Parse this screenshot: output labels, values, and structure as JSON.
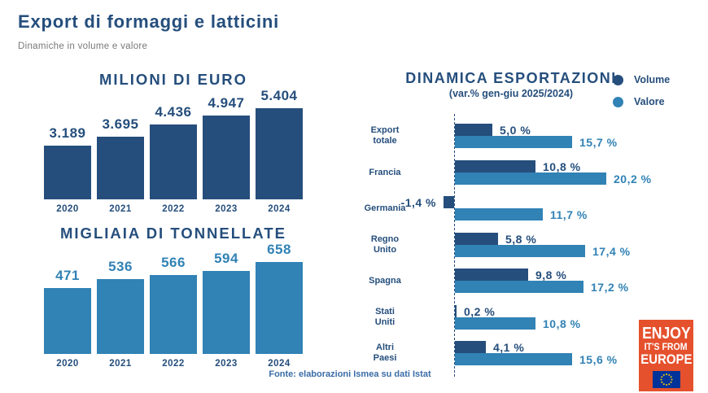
{
  "page": {
    "title": "Export di formaggi e latticini",
    "subtitle": "Dinamiche in volume e valore",
    "source": "Fonte: elaborazioni Ismea su dati Istat"
  },
  "colors": {
    "dark_blue": "#254e7c",
    "light_blue": "#3182b5",
    "subtitle_gray": "#77787b",
    "source_blue": "#3a6ca6",
    "logo_orange": "#e5512d",
    "eu_flag_blue": "#003399",
    "eu_star_yellow": "#ffcc00"
  },
  "chart_data": [
    {
      "id": "milioni-di-euro",
      "type": "bar",
      "title": "MILIONI DI EURO",
      "categories": [
        "2020",
        "2021",
        "2022",
        "2023",
        "2024"
      ],
      "values": [
        3189,
        3695,
        4436,
        4947,
        5404
      ],
      "value_labels": [
        "3.189",
        "3.695",
        "4.436",
        "4.947",
        "5.404"
      ],
      "bar_color": "#254e7c",
      "label_color": "#254e7c",
      "ylim": [
        0,
        5404
      ],
      "grid": false
    },
    {
      "id": "migliaia-di-tonnellate",
      "type": "bar",
      "title": "MIGLIAIA DI TONNELLATE",
      "categories": [
        "2020",
        "2021",
        "2022",
        "2023",
        "2024"
      ],
      "values": [
        471,
        536,
        566,
        594,
        658
      ],
      "value_labels": [
        "471",
        "536",
        "566",
        "594",
        "658"
      ],
      "bar_color": "#3182b5",
      "label_color": "#3182b5",
      "ylim": [
        0,
        658
      ],
      "grid": false
    },
    {
      "id": "dinamica-esportazioni",
      "type": "bar",
      "orientation": "horizontal",
      "title": "DINAMICA ESPORTAZIONI",
      "subtitle": "(var.% gen-giu 2025/2024)",
      "legend_position": "top-right",
      "legend": [
        {
          "name": "Volume",
          "color": "#254e7c"
        },
        {
          "name": "Valore",
          "color": "#3182b5"
        }
      ],
      "categories": [
        "Export\ntotale",
        "Francia",
        "Germania",
        "Regno\nUnito",
        "Spagna",
        "Stati\nUniti",
        "Altri\nPaesi"
      ],
      "series": [
        {
          "name": "Volume",
          "values": [
            5.0,
            10.8,
            -1.4,
            5.8,
            9.8,
            0.2,
            4.1
          ],
          "labels": [
            "5,0 %",
            "10,8 %",
            "-1,4 %",
            "5,8 %",
            "9,8 %",
            "0,2 %",
            "4,1 %"
          ]
        },
        {
          "name": "Valore",
          "values": [
            15.7,
            20.2,
            11.7,
            17.4,
            17.2,
            10.8,
            15.6
          ],
          "labels": [
            "15,7 %",
            "20,2 %",
            "11,7 %",
            "17,4 %",
            "17,2 %",
            "10,8 %",
            "15,6 %"
          ]
        }
      ],
      "xlim": [
        -2,
        21
      ],
      "grid": false
    }
  ],
  "logo": {
    "lines": [
      "ENJOY",
      "IT'S FROM",
      "EUROPE"
    ],
    "flag": "eu-flag"
  }
}
